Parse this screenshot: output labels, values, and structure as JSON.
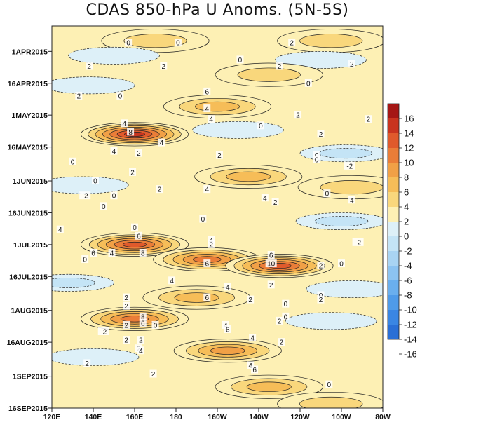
{
  "chart_data": {
    "type": "heatmap",
    "title": "CDAS 850-hPa U Anoms. (5N-5S)",
    "xlabel": "",
    "ylabel": "",
    "x_ticks": [
      "120E",
      "140E",
      "160E",
      "180",
      "160W",
      "140W",
      "120W",
      "100W",
      "80W"
    ],
    "x_range_deg_east": [
      120,
      280
    ],
    "y_ticks": [
      "1APR2015",
      "16APR2015",
      "1MAY2015",
      "16MAY2015",
      "1JUN2015",
      "16JUN2015",
      "1JUL2015",
      "16JUL2015",
      "1AUG2015",
      "16AUG2015",
      "1SEP2015",
      "16SEP2015"
    ],
    "y_range": [
      "2015-03-20",
      "2015-09-16"
    ],
    "y_direction": "time increases downward",
    "colorbar_levels": [
      -16,
      -14,
      -12,
      -10,
      -8,
      -6,
      -4,
      -2,
      0,
      2,
      4,
      6,
      8,
      10,
      12,
      14,
      16
    ],
    "colorbar_labels": [
      "16",
      "14",
      "12",
      "10",
      "8",
      "6",
      "4",
      "2",
      "0",
      "-2",
      "-4",
      "-6",
      "-8",
      "-10",
      "-12",
      "-14",
      "-16"
    ],
    "colors": {
      "n16": "#2a6fd6",
      "n14": "#3a86e3",
      "n12": "#4f9be9",
      "n10": "#6aafee",
      "n8": "#8cc3f1",
      "n6": "#a9d4f3",
      "n4": "#c4e4f6",
      "n2": "#ddf0f8",
      "p2": "#fdf0b4",
      "p4": "#f9d77c",
      "p6": "#f6bd58",
      "p8": "#f1a046",
      "p10": "#ea7d38",
      "p12": "#e05a2c",
      "p14": "#c9341f",
      "p16": "#a51715"
    },
    "anomaly_features": [
      {
        "kind": "westerly",
        "lon": 170,
        "date": "2015-03-27",
        "peak": 4
      },
      {
        "kind": "westerly",
        "lon": 255,
        "date": "2015-03-27",
        "peak": 4
      },
      {
        "kind": "easterly",
        "lon": 150,
        "date": "2015-04-03",
        "peak": -2
      },
      {
        "kind": "easterly",
        "lon": 250,
        "date": "2015-04-05",
        "peak": -2
      },
      {
        "kind": "westerly",
        "lon": 225,
        "date": "2015-04-12",
        "peak": 4
      },
      {
        "kind": "easterly",
        "lon": 138,
        "date": "2015-04-17",
        "peak": -2
      },
      {
        "kind": "westerly",
        "lon": 200,
        "date": "2015-04-27",
        "peak": 6
      },
      {
        "kind": "westerly",
        "lon": 160,
        "date": "2015-05-10",
        "peak": 14
      },
      {
        "kind": "easterly",
        "lon": 210,
        "date": "2015-05-08",
        "peak": -2
      },
      {
        "kind": "easterly",
        "lon": 262,
        "date": "2015-05-19",
        "peak": -4
      },
      {
        "kind": "westerly",
        "lon": 215,
        "date": "2015-05-30",
        "peak": 6
      },
      {
        "kind": "westerly",
        "lon": 265,
        "date": "2015-06-04",
        "peak": 4
      },
      {
        "kind": "easterly",
        "lon": 135,
        "date": "2015-06-03",
        "peak": -2
      },
      {
        "kind": "easterly",
        "lon": 260,
        "date": "2015-06-20",
        "peak": -4
      },
      {
        "kind": "westerly",
        "lon": 160,
        "date": "2015-07-01",
        "peak": 12
      },
      {
        "kind": "westerly",
        "lon": 195,
        "date": "2015-07-08",
        "peak": 10
      },
      {
        "kind": "westerly",
        "lon": 230,
        "date": "2015-07-11",
        "peak": 12
      },
      {
        "kind": "easterly",
        "lon": 128,
        "date": "2015-07-19",
        "peak": -4
      },
      {
        "kind": "easterly",
        "lon": 265,
        "date": "2015-07-22",
        "peak": -2
      },
      {
        "kind": "westerly",
        "lon": 190,
        "date": "2015-07-26",
        "peak": 6
      },
      {
        "kind": "westerly",
        "lon": 160,
        "date": "2015-08-05",
        "peak": 10
      },
      {
        "kind": "easterly",
        "lon": 255,
        "date": "2015-08-06",
        "peak": -2
      },
      {
        "kind": "westerly",
        "lon": 205,
        "date": "2015-08-20",
        "peak": 8
      },
      {
        "kind": "easterly",
        "lon": 140,
        "date": "2015-08-23",
        "peak": -2
      },
      {
        "kind": "westerly",
        "lon": 225,
        "date": "2015-09-06",
        "peak": 6
      },
      {
        "kind": "westerly",
        "lon": 255,
        "date": "2015-09-14",
        "peak": 4
      }
    ],
    "contour_labels": [
      {
        "text": "0",
        "lon": 157,
        "date": "2015-03-28"
      },
      {
        "text": "0",
        "lon": 181,
        "date": "2015-03-28"
      },
      {
        "text": "2",
        "lon": 236,
        "date": "2015-03-28"
      },
      {
        "text": "2",
        "lon": 138,
        "date": "2015-04-08"
      },
      {
        "text": "2",
        "lon": 174,
        "date": "2015-04-08"
      },
      {
        "text": "0",
        "lon": 211,
        "date": "2015-04-05"
      },
      {
        "text": "2",
        "lon": 230,
        "date": "2015-04-08"
      },
      {
        "text": "2",
        "lon": 265,
        "date": "2015-04-07"
      },
      {
        "text": "2",
        "lon": 133,
        "date": "2015-04-22"
      },
      {
        "text": "0",
        "lon": 153,
        "date": "2015-04-22"
      },
      {
        "text": "6",
        "lon": 195,
        "date": "2015-04-20"
      },
      {
        "text": "0",
        "lon": 244,
        "date": "2015-04-16"
      },
      {
        "text": "4",
        "lon": 195,
        "date": "2015-04-28"
      },
      {
        "text": "2",
        "lon": 239,
        "date": "2015-05-01"
      },
      {
        "text": "2",
        "lon": 273,
        "date": "2015-05-03"
      },
      {
        "text": "4",
        "lon": 197,
        "date": "2015-05-03"
      },
      {
        "text": "0",
        "lon": 221,
        "date": "2015-05-06"
      },
      {
        "text": "4",
        "lon": 155,
        "date": "2015-05-05"
      },
      {
        "text": "8",
        "lon": 158,
        "date": "2015-05-09"
      },
      {
        "text": "2",
        "lon": 250,
        "date": "2015-05-10"
      },
      {
        "text": "4",
        "lon": 173,
        "date": "2015-05-14"
      },
      {
        "text": "2",
        "lon": 162,
        "date": "2015-05-19"
      },
      {
        "text": "4",
        "lon": 150,
        "date": "2015-05-18"
      },
      {
        "text": "2",
        "lon": 201,
        "date": "2015-05-20"
      },
      {
        "text": "0",
        "lon": 248,
        "date": "2015-05-20"
      },
      {
        "text": "0",
        "lon": 130,
        "date": "2015-05-23"
      },
      {
        "text": "0",
        "lon": 248,
        "date": "2015-05-22"
      },
      {
        "text": "-2",
        "lon": 264,
        "date": "2015-05-25"
      },
      {
        "text": "2",
        "lon": 159,
        "date": "2015-05-28"
      },
      {
        "text": "0",
        "lon": 141,
        "date": "2015-06-01"
      },
      {
        "text": "2",
        "lon": 172,
        "date": "2015-06-05"
      },
      {
        "text": "4",
        "lon": 195,
        "date": "2015-06-05"
      },
      {
        "text": "-2",
        "lon": 136,
        "date": "2015-06-08"
      },
      {
        "text": "0",
        "lon": 150,
        "date": "2015-06-08"
      },
      {
        "text": "4",
        "lon": 223,
        "date": "2015-06-09"
      },
      {
        "text": "2",
        "lon": 228,
        "date": "2015-06-11"
      },
      {
        "text": "0",
        "lon": 253,
        "date": "2015-06-07"
      },
      {
        "text": "4",
        "lon": 265,
        "date": "2015-06-10"
      },
      {
        "text": "0",
        "lon": 145,
        "date": "2015-06-13"
      },
      {
        "text": "0",
        "lon": 193,
        "date": "2015-06-19"
      },
      {
        "text": "4",
        "lon": 124,
        "date": "2015-06-24"
      },
      {
        "text": "0",
        "lon": 160,
        "date": "2015-06-23"
      },
      {
        "text": "6",
        "lon": 162,
        "date": "2015-06-27"
      },
      {
        "text": "4",
        "lon": 197,
        "date": "2015-06-29"
      },
      {
        "text": "2",
        "lon": 197,
        "date": "2015-07-01"
      },
      {
        "text": "-2",
        "lon": 268,
        "date": "2015-06-30"
      },
      {
        "text": "6",
        "lon": 140,
        "date": "2015-07-05"
      },
      {
        "text": "4",
        "lon": 149,
        "date": "2015-07-05"
      },
      {
        "text": "8",
        "lon": 164,
        "date": "2015-07-05"
      },
      {
        "text": "0",
        "lon": 136,
        "date": "2015-07-08"
      },
      {
        "text": "6",
        "lon": 226,
        "date": "2015-07-06"
      },
      {
        "text": "6",
        "lon": 195,
        "date": "2015-07-10"
      },
      {
        "text": "10",
        "lon": 226,
        "date": "2015-07-10"
      },
      {
        "text": "2",
        "lon": 250,
        "date": "2015-07-11"
      },
      {
        "text": "0",
        "lon": 260,
        "date": "2015-07-10"
      },
      {
        "text": "4",
        "lon": 178,
        "date": "2015-07-18"
      },
      {
        "text": "4",
        "lon": 205,
        "date": "2015-07-21"
      },
      {
        "text": "2",
        "lon": 226,
        "date": "2015-07-20"
      },
      {
        "text": "2",
        "lon": 156,
        "date": "2015-07-26"
      },
      {
        "text": "6",
        "lon": 195,
        "date": "2015-07-26"
      },
      {
        "text": "2",
        "lon": 216,
        "date": "2015-07-27"
      },
      {
        "text": "0",
        "lon": 250,
        "date": "2015-07-25"
      },
      {
        "text": "2",
        "lon": 156,
        "date": "2015-07-30"
      },
      {
        "text": "0",
        "lon": 233,
        "date": "2015-07-29"
      },
      {
        "text": "2",
        "lon": 250,
        "date": "2015-07-27"
      },
      {
        "text": "8",
        "lon": 164,
        "date": "2015-08-04"
      },
      {
        "text": "6",
        "lon": 164,
        "date": "2015-08-07"
      },
      {
        "text": "0",
        "lon": 170,
        "date": "2015-08-08"
      },
      {
        "text": "0",
        "lon": 233,
        "date": "2015-08-04"
      },
      {
        "text": "2",
        "lon": 230,
        "date": "2015-08-06"
      },
      {
        "text": "2",
        "lon": 156,
        "date": "2015-08-08"
      },
      {
        "text": "-2",
        "lon": 145,
        "date": "2015-08-11"
      },
      {
        "text": "4",
        "lon": 204,
        "date": "2015-08-08"
      },
      {
        "text": "6",
        "lon": 205,
        "date": "2015-08-10"
      },
      {
        "text": "2",
        "lon": 156,
        "date": "2015-08-15"
      },
      {
        "text": "2",
        "lon": 163,
        "date": "2015-08-15"
      },
      {
        "text": "4",
        "lon": 217,
        "date": "2015-08-14"
      },
      {
        "text": "2",
        "lon": 231,
        "date": "2015-08-16"
      },
      {
        "text": "2",
        "lon": 162,
        "date": "2015-08-19"
      },
      {
        "text": "4",
        "lon": 163,
        "date": "2015-08-20"
      },
      {
        "text": "2",
        "lon": 137,
        "date": "2015-08-26"
      },
      {
        "text": "4",
        "lon": 216,
        "date": "2015-08-27"
      },
      {
        "text": "6",
        "lon": 218,
        "date": "2015-08-29"
      },
      {
        "text": "2",
        "lon": 169,
        "date": "2015-08-31"
      },
      {
        "text": "0",
        "lon": 254,
        "date": "2015-09-05"
      }
    ]
  }
}
